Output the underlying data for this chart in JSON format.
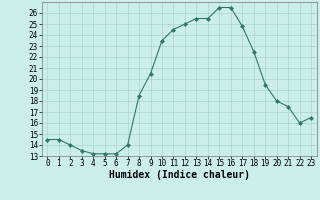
{
  "x": [
    0,
    1,
    2,
    3,
    4,
    5,
    6,
    7,
    8,
    9,
    10,
    11,
    12,
    13,
    14,
    15,
    16,
    17,
    18,
    19,
    20,
    21,
    22,
    23
  ],
  "y": [
    14.5,
    14.5,
    14.0,
    13.5,
    13.2,
    13.2,
    13.2,
    14.0,
    18.5,
    20.5,
    23.5,
    24.5,
    25.0,
    25.5,
    25.5,
    26.5,
    26.5,
    24.8,
    22.5,
    19.5,
    18.0,
    17.5,
    16.0,
    16.5
  ],
  "line_color": "#2d7a63",
  "marker": "D",
  "marker_size": 2.0,
  "bg_color": "#cceee8",
  "grid_color": "#aad4cc",
  "xlabel": "Humidex (Indice chaleur)",
  "xlim": [
    -0.5,
    23.5
  ],
  "ylim": [
    13,
    27
  ],
  "yticks": [
    13,
    14,
    15,
    16,
    17,
    18,
    19,
    20,
    21,
    22,
    23,
    24,
    25,
    26
  ],
  "xticks": [
    0,
    1,
    2,
    3,
    4,
    5,
    6,
    7,
    8,
    9,
    10,
    11,
    12,
    13,
    14,
    15,
    16,
    17,
    18,
    19,
    20,
    21,
    22,
    23
  ],
  "tick_fontsize": 5.5,
  "xlabel_fontsize": 7.0
}
